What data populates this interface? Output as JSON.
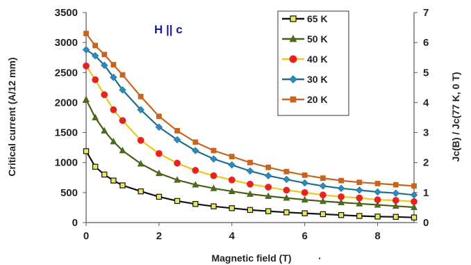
{
  "chart_data": {
    "type": "line",
    "title": "",
    "annotation": "H || c",
    "xlabel": "Magnetic field (T)",
    "xlabel_suffix": "·",
    "ylabel": "Critical current (A/12 mm)",
    "y2label": "Jc(B) / Jc(77 K, 0 T)",
    "xlim": [
      0,
      9
    ],
    "ylim": [
      0,
      3500
    ],
    "y2lim": [
      0,
      7
    ],
    "xticks": [
      "0",
      "2",
      "4",
      "6",
      "8"
    ],
    "yticks": [
      "0",
      "500",
      "1000",
      "1500",
      "2000",
      "2500",
      "3000",
      "3500"
    ],
    "y2ticks": [
      "0",
      "1",
      "2",
      "3",
      "4",
      "5",
      "6",
      "7"
    ],
    "grid": false,
    "legend_position": "top-right inside",
    "x": [
      0,
      0.25,
      0.5,
      0.75,
      1.0,
      1.5,
      2.0,
      2.5,
      3.0,
      3.5,
      4.0,
      4.5,
      5.0,
      5.5,
      6.0,
      6.5,
      7.0,
      7.5,
      8.0,
      8.5,
      9.0
    ],
    "series": [
      {
        "name": "65 K",
        "color": "#111111",
        "marker": "square-open",
        "marker_fill": "#e8e85a",
        "values": [
          1190,
          930,
          800,
          700,
          620,
          520,
          430,
          360,
          310,
          270,
          240,
          210,
          190,
          170,
          155,
          140,
          125,
          110,
          100,
          95,
          85
        ]
      },
      {
        "name": "50 K",
        "color": "#4a5e1a",
        "marker": "triangle",
        "marker_fill": "#4a6e1a",
        "values": [
          2050,
          1750,
          1530,
          1350,
          1200,
          980,
          820,
          710,
          630,
          570,
          520,
          475,
          440,
          410,
          380,
          355,
          335,
          315,
          295,
          275,
          255
        ]
      },
      {
        "name": "40 K",
        "color": "#f0c419",
        "marker": "circle",
        "marker_fill": "#e8231f",
        "values": [
          2610,
          2380,
          2130,
          1880,
          1700,
          1370,
          1150,
          990,
          870,
          780,
          710,
          640,
          590,
          540,
          500,
          460,
          430,
          410,
          380,
          370,
          350
        ]
      },
      {
        "name": "30 K",
        "color": "#1f6e8c",
        "marker": "diamond",
        "marker_fill": "#2a8ac0",
        "values": [
          2880,
          2780,
          2620,
          2420,
          2210,
          1880,
          1590,
          1380,
          1200,
          1060,
          960,
          860,
          780,
          720,
          660,
          610,
          570,
          540,
          510,
          490,
          460
        ]
      },
      {
        "name": "20 K",
        "color": "#c8641e",
        "marker": "square",
        "marker_fill": "#c8641e",
        "values": [
          3150,
          2950,
          2800,
          2630,
          2460,
          2100,
          1770,
          1530,
          1340,
          1200,
          1100,
          1000,
          920,
          850,
          790,
          740,
          700,
          670,
          650,
          630,
          610
        ]
      }
    ]
  }
}
